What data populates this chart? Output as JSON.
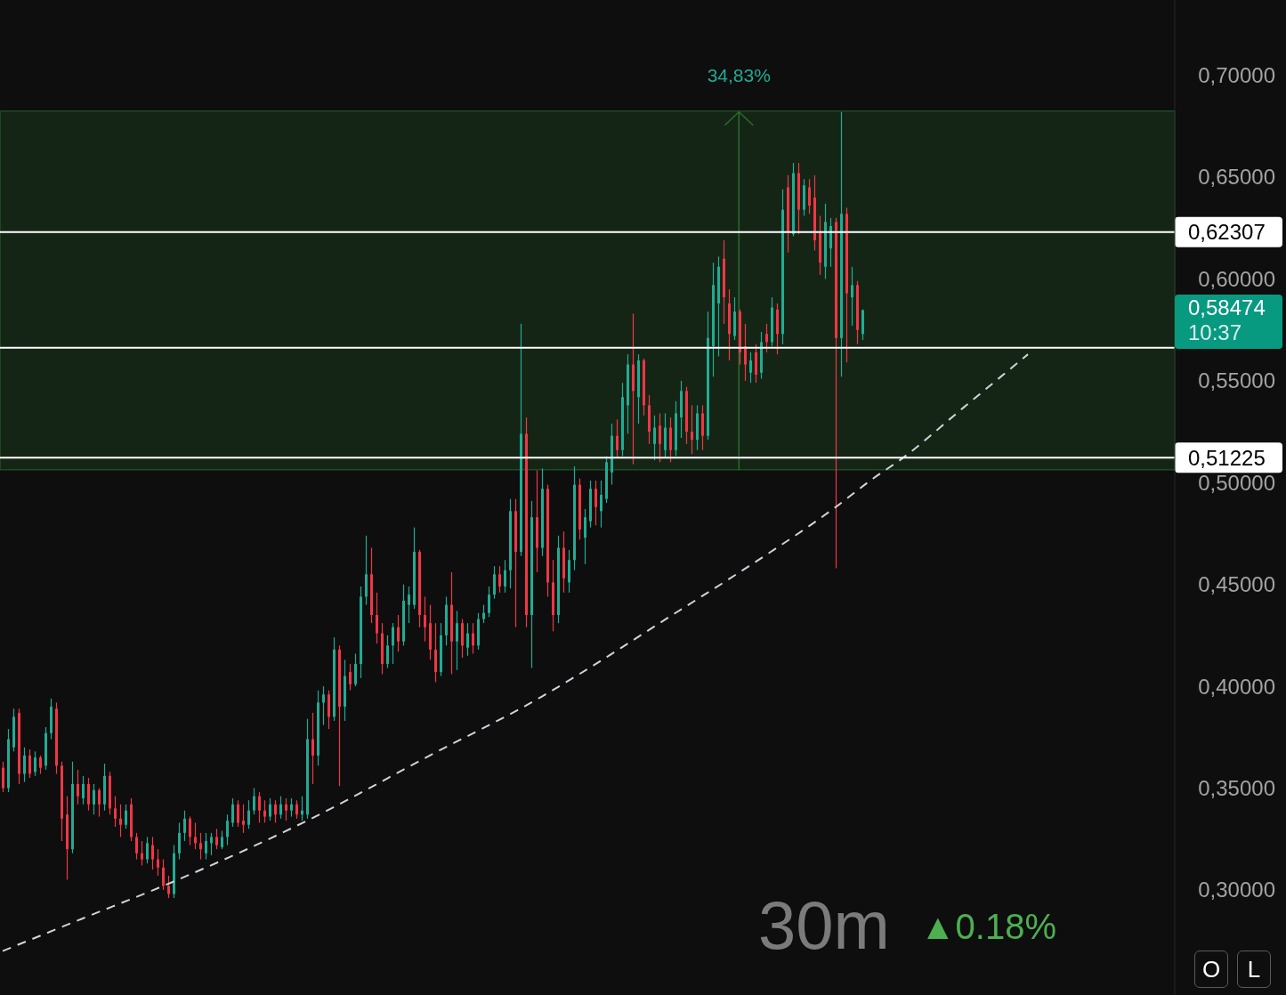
{
  "chart_data": {
    "type": "candlestick",
    "title": "30m",
    "annotations": [
      "▲0.18%",
      "0,58474\n10:37",
      "O",
      "L"
    ],
    "categories": [
      null,
      null,
      null,
      null,
      null,
      null,
      null,
      null,
      null,
      null,
      null,
      null,
      null,
      null,
      null,
      null,
      null,
      null,
      null,
      null,
      null,
      null,
      null,
      null,
      null,
      null,
      null,
      null,
      null,
      null,
      null,
      null,
      null,
      null,
      null,
      null,
      null,
      null,
      null,
      null,
      null,
      null,
      null,
      null,
      null,
      null,
      null,
      null,
      null,
      null,
      null,
      null,
      null,
      null,
      null,
      null,
      null,
      null,
      null,
      null,
      null,
      null,
      null,
      null,
      null,
      null,
      null,
      null,
      null,
      null,
      null,
      null,
      null,
      null,
      null,
      null,
      null,
      null,
      null,
      null,
      null,
      null,
      null,
      null,
      null,
      null,
      null,
      null,
      null,
      null,
      null,
      null,
      null,
      null,
      null,
      null,
      null,
      null,
      null,
      null,
      null,
      null,
      null,
      null,
      null,
      null,
      null,
      null,
      null,
      null,
      null,
      null,
      null,
      null,
      null,
      null,
      null,
      null,
      null,
      null,
      null,
      null,
      null,
      null,
      null,
      null,
      null,
      null,
      null,
      null,
      null,
      null,
      null,
      null,
      null,
      null,
      null,
      null,
      null,
      null,
      null,
      null,
      null,
      null,
      null,
      null,
      null,
      null,
      null,
      null,
      null,
      null,
      null,
      null,
      null,
      null,
      null,
      null,
      null,
      null,
      null,
      null,
      null,
      null,
      null,
      null,
      null,
      null,
      null,
      null,
      null,
      null,
      null,
      null,
      null,
      null,
      null,
      null,
      null,
      null,
      null,
      null,
      null,
      null,
      null,
      null,
      null,
      null,
      null,
      null,
      null,
      null,
      null,
      null,
      null,
      null,
      null,
      null,
      null,
      null,
      null,
      null,
      null,
      null,
      null,
      null,
      null,
      null,
      null,
      null,
      null,
      null,
      null,
      null,
      null,
      null,
      null,
      null,
      null,
      null
    ],
    "ohlc": [
      [
        0.36,
        0.363,
        0.348,
        0.35
      ],
      [
        0.35,
        0.379,
        0.348,
        0.374
      ],
      [
        0.37,
        0.389,
        0.368,
        0.385
      ],
      [
        0.387,
        0.389,
        0.352,
        0.357
      ],
      [
        0.357,
        0.37,
        0.353,
        0.366
      ],
      [
        0.366,
        0.369,
        0.355,
        0.357
      ],
      [
        0.358,
        0.368,
        0.356,
        0.365
      ],
      [
        0.365,
        0.366,
        0.357,
        0.36
      ],
      [
        0.361,
        0.38,
        0.359,
        0.377
      ],
      [
        0.377,
        0.394,
        0.374,
        0.39
      ],
      [
        0.389,
        0.392,
        0.357,
        0.361
      ],
      [
        0.361,
        0.363,
        0.324,
        0.335
      ],
      [
        0.337,
        0.346,
        0.305,
        0.32
      ],
      [
        0.32,
        0.363,
        0.318,
        0.352
      ],
      [
        0.352,
        0.359,
        0.342,
        0.346
      ],
      [
        0.345,
        0.356,
        0.342,
        0.352
      ],
      [
        0.352,
        0.355,
        0.339,
        0.342
      ],
      [
        0.342,
        0.352,
        0.337,
        0.349
      ],
      [
        0.349,
        0.35,
        0.336,
        0.342
      ],
      [
        0.342,
        0.362,
        0.339,
        0.356
      ],
      [
        0.356,
        0.358,
        0.337,
        0.34
      ],
      [
        0.34,
        0.346,
        0.331,
        0.335
      ],
      [
        0.335,
        0.342,
        0.326,
        0.332
      ],
      [
        0.332,
        0.342,
        0.33,
        0.339
      ],
      [
        0.342,
        0.345,
        0.324,
        0.326
      ],
      [
        0.326,
        0.328,
        0.315,
        0.318
      ],
      [
        0.318,
        0.324,
        0.312,
        0.315
      ],
      [
        0.315,
        0.326,
        0.313,
        0.323
      ],
      [
        0.322,
        0.326,
        0.31,
        0.315
      ],
      [
        0.315,
        0.32,
        0.307,
        0.311
      ],
      [
        0.311,
        0.315,
        0.3,
        0.302
      ],
      [
        0.302,
        0.307,
        0.296,
        0.298
      ],
      [
        0.298,
        0.322,
        0.296,
        0.318
      ],
      [
        0.318,
        0.333,
        0.315,
        0.328
      ],
      [
        0.328,
        0.339,
        0.324,
        0.335
      ],
      [
        0.335,
        0.336,
        0.322,
        0.326
      ],
      [
        0.326,
        0.333,
        0.32,
        0.323
      ],
      [
        0.323,
        0.328,
        0.315,
        0.32
      ],
      [
        0.318,
        0.328,
        0.315,
        0.324
      ],
      [
        0.323,
        0.328,
        0.317,
        0.326
      ],
      [
        0.326,
        0.33,
        0.32,
        0.322
      ],
      [
        0.321,
        0.329,
        0.32,
        0.326
      ],
      [
        0.326,
        0.337,
        0.322,
        0.334
      ],
      [
        0.333,
        0.345,
        0.331,
        0.342
      ],
      [
        0.342,
        0.344,
        0.331,
        0.333
      ],
      [
        0.334,
        0.342,
        0.328,
        0.332
      ],
      [
        0.332,
        0.344,
        0.33,
        0.339
      ],
      [
        0.339,
        0.35,
        0.337,
        0.346
      ],
      [
        0.346,
        0.348,
        0.333,
        0.339
      ],
      [
        0.339,
        0.344,
        0.333,
        0.336
      ],
      [
        0.336,
        0.345,
        0.334,
        0.342
      ],
      [
        0.342,
        0.344,
        0.333,
        0.337
      ],
      [
        0.337,
        0.346,
        0.335,
        0.342
      ],
      [
        0.342,
        0.345,
        0.334,
        0.339
      ],
      [
        0.339,
        0.345,
        0.336,
        0.342
      ],
      [
        0.342,
        0.344,
        0.335,
        0.337
      ],
      [
        0.337,
        0.346,
        0.334,
        0.339
      ],
      [
        0.337,
        0.384,
        0.335,
        0.374
      ],
      [
        0.374,
        0.387,
        0.352,
        0.366
      ],
      [
        0.366,
        0.398,
        0.361,
        0.392
      ],
      [
        0.392,
        0.4,
        0.381,
        0.396
      ],
      [
        0.396,
        0.398,
        0.379,
        0.385
      ],
      [
        0.385,
        0.424,
        0.383,
        0.418
      ],
      [
        0.418,
        0.42,
        0.351,
        0.39
      ],
      [
        0.39,
        0.413,
        0.383,
        0.405
      ],
      [
        0.407,
        0.411,
        0.398,
        0.401
      ],
      [
        0.401,
        0.416,
        0.4,
        0.411
      ],
      [
        0.411,
        0.449,
        0.404,
        0.444
      ],
      [
        0.444,
        0.474,
        0.44,
        0.455
      ],
      [
        0.455,
        0.468,
        0.431,
        0.435
      ],
      [
        0.435,
        0.446,
        0.421,
        0.426
      ],
      [
        0.426,
        0.431,
        0.406,
        0.411
      ],
      [
        0.411,
        0.425,
        0.409,
        0.42
      ],
      [
        0.42,
        0.431,
        0.411,
        0.429
      ],
      [
        0.429,
        0.435,
        0.417,
        0.422
      ],
      [
        0.422,
        0.45,
        0.42,
        0.442
      ],
      [
        0.44,
        0.449,
        0.431,
        0.445
      ],
      [
        0.44,
        0.478,
        0.438,
        0.466
      ],
      [
        0.466,
        0.467,
        0.429,
        0.435
      ],
      [
        0.435,
        0.444,
        0.422,
        0.429
      ],
      [
        0.431,
        0.44,
        0.413,
        0.418
      ],
      [
        0.418,
        0.431,
        0.402,
        0.407
      ],
      [
        0.407,
        0.431,
        0.405,
        0.425
      ],
      [
        0.425,
        0.444,
        0.42,
        0.44
      ],
      [
        0.44,
        0.456,
        0.406,
        0.422
      ],
      [
        0.422,
        0.437,
        0.408,
        0.431
      ],
      [
        0.431,
        0.433,
        0.414,
        0.42
      ],
      [
        0.419,
        0.431,
        0.415,
        0.426
      ],
      [
        0.426,
        0.431,
        0.416,
        0.42
      ],
      [
        0.42,
        0.436,
        0.418,
        0.433
      ],
      [
        0.433,
        0.44,
        0.431,
        0.436
      ],
      [
        0.436,
        0.449,
        0.434,
        0.445
      ],
      [
        0.445,
        0.459,
        0.443,
        0.455
      ],
      [
        0.455,
        0.459,
        0.446,
        0.449
      ],
      [
        0.449,
        0.462,
        0.446,
        0.457
      ],
      [
        0.457,
        0.492,
        0.448,
        0.486
      ],
      [
        0.486,
        0.492,
        0.429,
        0.466
      ],
      [
        0.466,
        0.578,
        0.464,
        0.524
      ],
      [
        0.524,
        0.532,
        0.429,
        0.435
      ],
      [
        0.435,
        0.491,
        0.409,
        0.483
      ],
      [
        0.483,
        0.506,
        0.456,
        0.468
      ],
      [
        0.468,
        0.507,
        0.464,
        0.497
      ],
      [
        0.497,
        0.499,
        0.444,
        0.451
      ],
      [
        0.451,
        0.462,
        0.427,
        0.435
      ],
      [
        0.435,
        0.474,
        0.431,
        0.468
      ],
      [
        0.468,
        0.476,
        0.446,
        0.453
      ],
      [
        0.451,
        0.467,
        0.446,
        0.462
      ],
      [
        0.462,
        0.508,
        0.457,
        0.499
      ],
      [
        0.499,
        0.502,
        0.472,
        0.477
      ],
      [
        0.473,
        0.487,
        0.46,
        0.483
      ],
      [
        0.481,
        0.501,
        0.478,
        0.497
      ],
      [
        0.497,
        0.501,
        0.479,
        0.488
      ],
      [
        0.486,
        0.501,
        0.478,
        0.494
      ],
      [
        0.492,
        0.513,
        0.49,
        0.51
      ],
      [
        0.505,
        0.529,
        0.499,
        0.523
      ],
      [
        0.523,
        0.531,
        0.512,
        0.516
      ],
      [
        0.516,
        0.549,
        0.513,
        0.542
      ],
      [
        0.538,
        0.563,
        0.524,
        0.558
      ],
      [
        0.558,
        0.583,
        0.509,
        0.545
      ],
      [
        0.542,
        0.563,
        0.529,
        0.56
      ],
      [
        0.56,
        0.561,
        0.533,
        0.538
      ],
      [
        0.538,
        0.543,
        0.519,
        0.525
      ],
      [
        0.519,
        0.533,
        0.511,
        0.527
      ],
      [
        0.528,
        0.534,
        0.51,
        0.519
      ],
      [
        0.516,
        0.534,
        0.512,
        0.527
      ],
      [
        0.527,
        0.532,
        0.51,
        0.516
      ],
      [
        0.516,
        0.54,
        0.513,
        0.534
      ],
      [
        0.532,
        0.55,
        0.522,
        0.545
      ],
      [
        0.545,
        0.547,
        0.519,
        0.525
      ],
      [
        0.525,
        0.538,
        0.514,
        0.521
      ],
      [
        0.521,
        0.538,
        0.516,
        0.534
      ],
      [
        0.534,
        0.538,
        0.516,
        0.523
      ],
      [
        0.523,
        0.584,
        0.521,
        0.571
      ],
      [
        0.567,
        0.608,
        0.552,
        0.597
      ],
      [
        0.588,
        0.611,
        0.562,
        0.606
      ],
      [
        0.61,
        0.619,
        0.578,
        0.591
      ],
      [
        0.588,
        0.595,
        0.56,
        0.573
      ],
      [
        0.572,
        0.591,
        0.57,
        0.584
      ],
      [
        0.584,
        0.585,
        0.558,
        0.564
      ],
      [
        0.567,
        0.578,
        0.55,
        0.558
      ],
      [
        0.554,
        0.564,
        0.549,
        0.56
      ],
      [
        0.564,
        0.568,
        0.549,
        0.553
      ],
      [
        0.554,
        0.574,
        0.551,
        0.569
      ],
      [
        0.573,
        0.578,
        0.564,
        0.569
      ],
      [
        0.569,
        0.591,
        0.567,
        0.586
      ],
      [
        0.585,
        0.588,
        0.563,
        0.573
      ],
      [
        0.573,
        0.644,
        0.568,
        0.634
      ],
      [
        0.645,
        0.651,
        0.613,
        0.623
      ],
      [
        0.622,
        0.657,
        0.621,
        0.652
      ],
      [
        0.652,
        0.657,
        0.622,
        0.634
      ],
      [
        0.634,
        0.649,
        0.631,
        0.646
      ],
      [
        0.645,
        0.649,
        0.632,
        0.636
      ],
      [
        0.64,
        0.651,
        0.614,
        0.619
      ],
      [
        0.623,
        0.631,
        0.602,
        0.608
      ],
      [
        0.606,
        0.637,
        0.6,
        0.628
      ],
      [
        0.615,
        0.63,
        0.606,
        0.626
      ],
      [
        0.628,
        0.63,
        0.458,
        0.571
      ],
      [
        0.571,
        0.682,
        0.552,
        0.632
      ],
      [
        0.632,
        0.635,
        0.559,
        0.593
      ],
      [
        0.591,
        0.606,
        0.577,
        0.597
      ],
      [
        0.597,
        0.599,
        0.568,
        0.575
      ],
      [
        0.573,
        0.585,
        0.57,
        0.58474
      ],
      null,
      null,
      null,
      null,
      null,
      null,
      null,
      null,
      null,
      null,
      null,
      null,
      null,
      null,
      null,
      null,
      null,
      null,
      null,
      null,
      null,
      null,
      null,
      null,
      null,
      null,
      null,
      null,
      null,
      null,
      null,
      null,
      null,
      null,
      null,
      null,
      null,
      null,
      null,
      null,
      null,
      null,
      null,
      null,
      null,
      null,
      null,
      null,
      null,
      null,
      null,
      null,
      null,
      null,
      null,
      null,
      null,
      null
    ],
    "colors": [
      "#f23645",
      "#22ab94",
      "#22ab94",
      "#f23645",
      "#22ab94",
      "#f23645",
      "#22ab94",
      "#f23645",
      "#22ab94",
      "#22ab94",
      "#f23645",
      "#f23645",
      "#f23645",
      "#22ab94",
      "#f23645",
      "#22ab94",
      "#f23645",
      "#22ab94",
      "#f23645",
      "#22ab94",
      "#f23645",
      "#f23645",
      "#f23645",
      "#22ab94",
      "#f23645",
      "#f23645",
      "#f23645",
      "#22ab94",
      "#f23645",
      "#f23645",
      "#f23645",
      "#f23645",
      "#22ab94",
      "#22ab94",
      "#22ab94",
      "#f23645",
      "#f23645",
      "#f23645",
      "#22ab94",
      "#22ab94",
      "#f23645",
      "#22ab94",
      "#22ab94",
      "#22ab94",
      "#f23645",
      "#f23645",
      "#22ab94",
      "#22ab94",
      "#f23645",
      "#f23645",
      "#22ab94",
      "#f23645",
      "#22ab94",
      "#f23645",
      "#22ab94",
      "#f23645",
      "#22ab94",
      "#22ab94",
      "#f23645",
      "#22ab94",
      "#22ab94",
      "#f23645",
      "#22ab94",
      "#f23645",
      "#22ab94",
      "#f23645",
      "#22ab94",
      "#22ab94",
      "#22ab94",
      "#f23645",
      "#f23645",
      "#f23645",
      "#22ab94",
      "#22ab94",
      "#f23645",
      "#22ab94",
      "#22ab94",
      "#22ab94",
      "#f23645",
      "#f23645",
      "#f23645",
      "#f23645",
      "#22ab94",
      "#22ab94",
      "#f23645",
      "#22ab94",
      "#f23645",
      "#22ab94",
      "#f23645",
      "#22ab94",
      "#22ab94",
      "#22ab94",
      "#22ab94",
      "#f23645",
      "#22ab94",
      "#22ab94",
      "#f23645",
      "#22ab94",
      "#f23645",
      "#22ab94",
      "#f23645",
      "#22ab94",
      "#f23645",
      "#f23645",
      "#22ab94",
      "#f23645",
      "#22ab94",
      "#22ab94",
      "#f23645",
      "#22ab94",
      "#22ab94",
      "#f23645",
      "#22ab94",
      "#22ab94",
      "#22ab94",
      "#f23645",
      "#22ab94",
      "#22ab94",
      "#f23645",
      "#22ab94",
      "#f23645",
      "#f23645",
      "#22ab94",
      "#f23645",
      "#22ab94",
      "#f23645",
      "#22ab94",
      "#22ab94",
      "#f23645",
      "#f23645",
      "#22ab94",
      "#f23645",
      "#22ab94",
      "#22ab94",
      "#22ab94",
      "#f23645",
      "#f23645",
      "#22ab94",
      "#f23645",
      "#f23645",
      "#22ab94",
      "#f23645",
      "#22ab94",
      "#f23645",
      "#22ab94",
      "#f23645",
      "#22ab94",
      "#f23645",
      "#22ab94",
      "#f23645",
      "#22ab94",
      "#f23645",
      "#f23645",
      "#f23645",
      "#22ab94",
      "#22ab94",
      "#f23645",
      "#22ab94",
      "#f23645",
      "#22ab94",
      "#f23645",
      "#22ab94",
      null,
      null,
      null,
      null,
      null,
      null,
      null,
      null,
      null,
      null,
      null,
      null,
      null,
      null,
      null,
      null,
      null,
      null,
      null,
      null,
      null,
      null,
      null,
      null,
      null,
      null,
      null,
      null,
      null,
      null,
      null,
      null,
      null,
      null,
      null,
      null,
      null,
      null,
      null,
      null,
      null,
      null,
      null,
      null,
      null,
      null,
      null,
      null,
      null,
      null,
      null,
      null,
      null,
      null,
      null,
      null,
      null,
      null
    ],
    "series": [
      {
        "type": "line",
        "color": "#d1d4dc",
        "values": [
          0.27,
          null,
          null,
          null,
          null,
          null,
          null,
          null,
          null,
          null,
          null,
          null,
          null,
          null,
          null,
          0.286,
          null,
          null,
          null,
          null,
          null,
          null,
          null,
          null,
          null,
          null,
          null,
          null,
          null,
          null,
          null,
          0.303,
          null,
          null,
          null,
          null,
          null,
          null,
          null,
          null,
          null,
          null,
          null,
          null,
          null,
          null,
          null,
          null,
          null,
          null,
          null,
          null,
          null,
          null,
          null,
          null,
          null,
          0.334,
          null,
          null,
          null,
          null,
          null,
          null,
          null,
          null,
          null,
          null,
          null,
          null,
          null,
          null,
          null,
          null,
          null,
          null,
          null,
          null,
          null,
          null,
          0.366,
          null,
          null,
          null,
          null,
          null,
          null,
          null,
          null,
          null,
          null,
          null,
          null,
          null,
          null,
          null,
          null,
          null,
          null,
          null,
          null,
          0.395,
          null,
          null,
          null,
          null,
          null,
          null,
          0.406,
          null,
          null,
          null,
          null,
          null,
          null,
          null,
          null,
          null,
          null,
          null,
          null,
          null,
          null,
          null,
          null,
          null,
          0.436,
          null,
          null,
          null,
          null,
          null,
          null,
          null,
          null,
          null,
          null,
          null,
          0.456,
          null,
          null,
          null,
          null,
          null,
          null,
          null,
          null,
          null,
          null,
          null,
          null,
          null,
          null,
          null,
          null,
          null,
          0.488,
          null,
          null,
          null,
          null,
          null,
          null,
          0.502,
          null,
          null,
          null,
          null,
          0.511,
          null,
          null,
          null,
          null,
          null,
          null,
          null,
          null,
          null,
          null,
          null,
          0.537,
          null,
          null,
          null,
          null,
          null,
          null,
          null,
          null,
          null,
          null,
          null,
          0.563,
          null,
          null,
          null,
          null,
          null,
          null,
          null,
          null,
          null,
          null,
          null,
          null,
          null,
          null,
          null,
          null,
          null,
          null,
          null,
          null,
          null,
          null,
          null,
          null,
          null,
          null,
          null
        ]
      }
    ],
    "ylim": [
      0.2484,
      0.737
    ],
    "yticks": [
      {
        "value": 0.3,
        "label": "0,30000"
      },
      {
        "value": 0.35,
        "label": "0,35000"
      },
      {
        "value": 0.4,
        "label": "0,40000"
      },
      {
        "value": 0.45,
        "label": "0,45000"
      },
      {
        "value": 0.5,
        "label": "0,50000"
      },
      {
        "value": 0.55,
        "label": "0,55000"
      },
      {
        "value": 0.6,
        "label": "0,60000"
      },
      {
        "value": 0.65,
        "label": "0,65000"
      },
      {
        "value": 0.7,
        "label": "0,70000"
      }
    ],
    "ref_lines": [
      {
        "axis": "y",
        "value": 0.62307,
        "label": "0,62307",
        "color": "#ffffff",
        "line_style": "solid"
      },
      {
        "axis": "y",
        "value": 0.56624,
        "color": "#ffffff",
        "line_style": "solid"
      },
      {
        "axis": "y",
        "value": 0.51225,
        "label": "0,51225",
        "color": "#ffffff",
        "line_style": "solid"
      }
    ],
    "bands": [
      {
        "axis": "y",
        "from": 0.5063,
        "to": 0.6825,
        "label": "34,83%",
        "color": "#2e7d32"
      }
    ],
    "line_style": "dashed",
    "tick_labels": "y"
  }
}
